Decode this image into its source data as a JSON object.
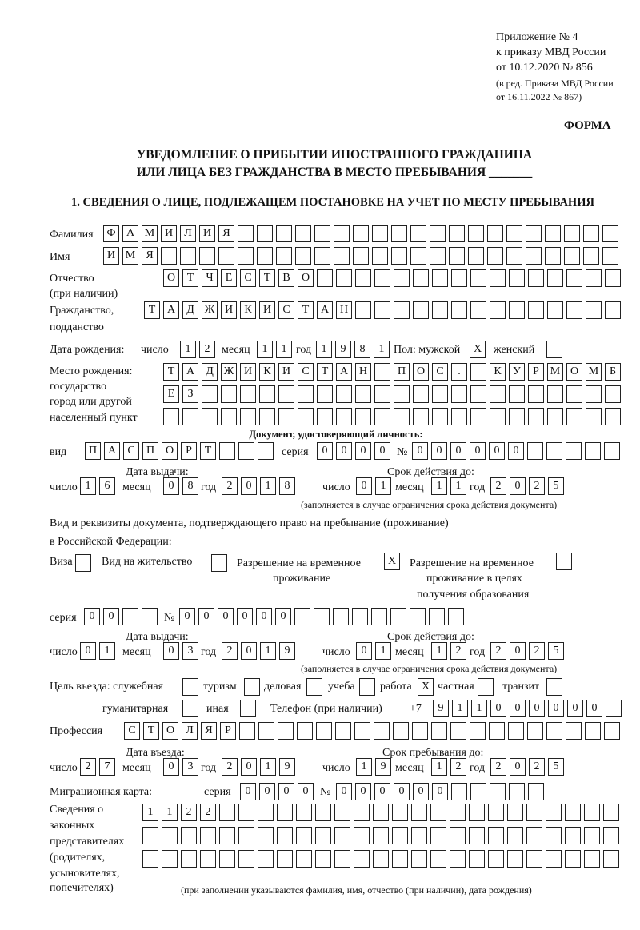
{
  "header": {
    "appendix": "Приложение № 4",
    "order": "к приказу МВД России",
    "order_date": "от 10.12.2020 № 856",
    "revision1": "(в ред. Приказа МВД России",
    "revision2": "от 16.11.2022 № 867)",
    "form_label": "ФОРМА",
    "title1": "УВЕДОМЛЕНИЕ О ПРИБЫТИИ ИНОСТРАННОГО ГРАЖДАНИНА",
    "title2": "ИЛИ ЛИЦА БЕЗ ГРАЖДАНСТВА В МЕСТО ПРЕБЫВАНИЯ _______",
    "section1": "1. СВЕДЕНИЯ О ЛИЦЕ, ПОДЛЕЖАЩЕМ ПОСТАНОВКЕ НА УЧЕТ ПО МЕСТУ ПРЕБЫВАНИЯ"
  },
  "labels": {
    "surname": "Фамилия",
    "name": "Имя",
    "patronymic": "Отчество",
    "patronymic2": "(при наличии)",
    "citizenship": "Гражданство,",
    "citizenship2": "подданство",
    "birth_date": "Дата рождения:",
    "day": "число",
    "month": "месяц",
    "year": "год",
    "sex": "Пол: мужской",
    "female": "женский",
    "birth_place": "Место рождения:",
    "bp2": "государство",
    "bp3": "город или другой",
    "bp4": "населенный пункт",
    "id_doc": "Документ, удостоверяющий личность:",
    "kind": "вид",
    "series": "серия",
    "number": "№",
    "issue_date": "Дата выдачи:",
    "valid_until": "Срок действия до:",
    "validity_note": "(заполняется в случае ограничения срока действия документа)",
    "right_doc1": "Вид и реквизиты документа, подтверждающего право на пребывание (проживание)",
    "right_doc2": "в Российской Федерации:",
    "visa": "Виза",
    "residence": "Вид на жительство",
    "trp1": "Разрешение на временное",
    "trp2": "проживание",
    "trpe1": "Разрешение на временное",
    "trpe2": "проживание в целях",
    "trpe3": "получения образования",
    "purpose": "Цель въезда: служебная",
    "tourism": "туризм",
    "business": "деловая",
    "study": "учеба",
    "work": "работа",
    "private": "частная",
    "transit": "транзит",
    "humanitarian": "гуманитарная",
    "other": "иная",
    "phone": "Телефон (при наличии)",
    "phone_prefix": "+7",
    "profession": "Профессия",
    "entry_date": "Дата въезда:",
    "stay_until": "Срок пребывания до:",
    "migration_card": "Миграционная карта:",
    "reps1": "Сведения о",
    "reps2": "законных",
    "reps3": "представителях",
    "reps4": "(родителях,",
    "reps5": "усыновителях,",
    "reps6": "попечителях)",
    "reps_note": "(при заполнении указываются фамилия, имя, отчество (при наличии), дата рождения)"
  },
  "fields": {
    "surname": {
      "value": "ФАМИЛИЯ",
      "boxes": 27
    },
    "name": {
      "value": "ИМЯ",
      "boxes": 27
    },
    "patronymic": {
      "value": "ОТЧЕСТВО",
      "boxes": 24
    },
    "citizenship": {
      "value": "ТАДЖИКИСТАН",
      "boxes": 25
    },
    "birth_day": {
      "value": "12",
      "boxes": 2
    },
    "birth_month": {
      "value": "11",
      "boxes": 2
    },
    "birth_year": {
      "value": "1981",
      "boxes": 4
    },
    "sex_male": {
      "value": "X",
      "boxes": 1
    },
    "sex_female": {
      "value": "",
      "boxes": 1
    },
    "birth_place1": {
      "value": "ТАДЖИКИСТАН ПОС. КУРМОМБ",
      "boxes": 24
    },
    "birth_place2": {
      "value": "ЕЗ",
      "boxes": 24
    },
    "birth_place3": {
      "value": "",
      "boxes": 24
    },
    "id_kind": {
      "value": "ПАСПОРТ",
      "boxes": 10
    },
    "id_series": {
      "value": "0000",
      "boxes": 4
    },
    "id_number": {
      "value": "000000",
      "boxes": 11
    },
    "id_issue_day": {
      "value": "16",
      "boxes": 2
    },
    "id_issue_month": {
      "value": "08",
      "boxes": 2
    },
    "id_issue_year": {
      "value": "2018",
      "boxes": 4
    },
    "id_valid_day": {
      "value": "01",
      "boxes": 2
    },
    "id_valid_month": {
      "value": "11",
      "boxes": 2
    },
    "id_valid_year": {
      "value": "2025",
      "boxes": 4
    },
    "visa": {
      "value": "",
      "boxes": 1
    },
    "residence": {
      "value": "",
      "boxes": 1
    },
    "trp": {
      "value": "X",
      "boxes": 1
    },
    "trpe": {
      "value": "",
      "boxes": 1
    },
    "rd_series": {
      "value": "00",
      "boxes": 4
    },
    "rd_number": {
      "value": "000000",
      "boxes": 15
    },
    "rd_issue_day": {
      "value": "01",
      "boxes": 2
    },
    "rd_issue_month": {
      "value": "03",
      "boxes": 2
    },
    "rd_issue_year": {
      "value": "2019",
      "boxes": 4
    },
    "rd_valid_day": {
      "value": "01",
      "boxes": 2
    },
    "rd_valid_month": {
      "value": "12",
      "boxes": 2
    },
    "rd_valid_year": {
      "value": "2025",
      "boxes": 4
    },
    "p_official": {
      "value": "",
      "boxes": 1
    },
    "p_tourism": {
      "value": "",
      "boxes": 1
    },
    "p_business": {
      "value": "",
      "boxes": 1
    },
    "p_study": {
      "value": "",
      "boxes": 1
    },
    "p_work": {
      "value": "X",
      "boxes": 1
    },
    "p_private": {
      "value": "",
      "boxes": 1
    },
    "p_transit": {
      "value": "",
      "boxes": 1
    },
    "p_humanitarian": {
      "value": "",
      "boxes": 1
    },
    "p_other": {
      "value": "",
      "boxes": 1
    },
    "phone": {
      "value": "911000000",
      "boxes": 10
    },
    "profession": {
      "value": "СТОЛЯР",
      "boxes": 26
    },
    "entry_day": {
      "value": "27",
      "boxes": 2
    },
    "entry_month": {
      "value": "03",
      "boxes": 2
    },
    "entry_year": {
      "value": "2019",
      "boxes": 4
    },
    "stay_day": {
      "value": "19",
      "boxes": 2
    },
    "stay_month": {
      "value": "12",
      "boxes": 2
    },
    "stay_year": {
      "value": "2025",
      "boxes": 4
    },
    "mc_series": {
      "value": "0000",
      "boxes": 4
    },
    "mc_number": {
      "value": "000000",
      "boxes": 11
    },
    "reps1": {
      "value": "1122",
      "boxes": 25
    },
    "reps2": {
      "value": "",
      "boxes": 25
    },
    "reps3": {
      "value": "",
      "boxes": 25
    }
  }
}
